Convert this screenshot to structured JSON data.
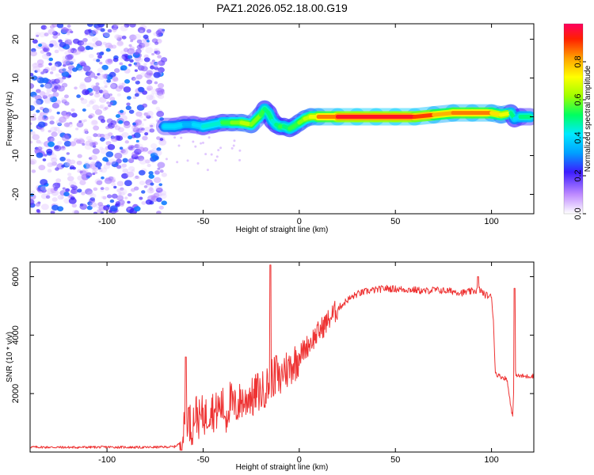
{
  "title": "PAZ1.2026.052.18.00.G19",
  "colors": {
    "snr_line": "#ee3333",
    "frame": "#000000",
    "scatter": "#8a2be2"
  },
  "chart_data": [
    {
      "type": "heatmap",
      "xlabel": "Height of straight line (km)",
      "ylabel": "Frequency (Hz)",
      "xlim": [
        -140,
        122
      ],
      "ylim": [
        -25,
        24
      ],
      "xticks": [
        -100,
        -50,
        0,
        50,
        100
      ],
      "yticks": [
        -20,
        -10,
        0,
        10,
        20
      ],
      "colorbar": {
        "label": "Normalized spectral amplitude",
        "range": [
          0,
          1
        ],
        "ticks": [
          "0.0",
          "0.2",
          "0.4",
          "0.6",
          "0.8"
        ],
        "stops": [
          {
            "v": 0.0,
            "c": "#ffffff"
          },
          {
            "v": 0.1,
            "c": "#c08cff"
          },
          {
            "v": 0.22,
            "c": "#3c1cff"
          },
          {
            "v": 0.32,
            "c": "#00a0ff"
          },
          {
            "v": 0.42,
            "c": "#00eaff"
          },
          {
            "v": 0.52,
            "c": "#00ff60"
          },
          {
            "v": 0.62,
            "c": "#a0ff00"
          },
          {
            "v": 0.72,
            "c": "#ffff00"
          },
          {
            "v": 0.82,
            "c": "#ffa000"
          },
          {
            "v": 0.92,
            "c": "#ff2000"
          },
          {
            "v": 1.0,
            "c": "#ff0060"
          }
        ]
      },
      "noise_region": {
        "x": [
          -140,
          -70
        ],
        "y": [
          -25,
          24
        ]
      },
      "ridge": {
        "x": [
          -70,
          -65,
          -60,
          -55,
          -50,
          -45,
          -40,
          -35,
          -30,
          -25,
          -20,
          -18,
          -16,
          -14,
          -12,
          -10,
          -8,
          -5,
          -3,
          0,
          3,
          6,
          10,
          20,
          30,
          40,
          50,
          60,
          70,
          80,
          90,
          100,
          105,
          110,
          112,
          115,
          120
        ],
        "y": [
          -2.5,
          -2.5,
          -2.0,
          -2.0,
          -2.5,
          -2.0,
          -1.5,
          -1.5,
          -1.5,
          -2.0,
          0.5,
          2.0,
          1.0,
          -1.0,
          -2.0,
          -2.5,
          -2.5,
          -3.0,
          -2.5,
          -1.5,
          -0.5,
          0.0,
          0.0,
          0.0,
          0.0,
          0.0,
          0.0,
          0.0,
          0.5,
          1.0,
          1.0,
          1.0,
          0.5,
          1.0,
          -0.5,
          0.0,
          0.0
        ],
        "amp": [
          0.4,
          0.4,
          0.35,
          0.4,
          0.45,
          0.45,
          0.55,
          0.6,
          0.65,
          0.6,
          0.55,
          0.5,
          0.5,
          0.45,
          0.5,
          0.55,
          0.5,
          0.55,
          0.55,
          0.6,
          0.65,
          0.7,
          0.85,
          0.95,
          0.95,
          0.95,
          0.95,
          0.9,
          0.8,
          0.85,
          0.85,
          0.75,
          0.7,
          0.5,
          0.4,
          0.5,
          0.5
        ]
      }
    },
    {
      "type": "line",
      "xlabel": "Height of straight line (km)",
      "ylabel": "SNR (10 * v/v)",
      "xlim": [
        -140,
        122
      ],
      "ylim": [
        0,
        6500
      ],
      "xticks": [
        -100,
        -50,
        0,
        50,
        100
      ],
      "yticks": [
        2000,
        4000,
        6000
      ],
      "series": [
        {
          "x": [
            -140,
            -120,
            -100,
            -80,
            -65,
            -62,
            -60,
            -58,
            -56,
            -54,
            -52,
            -50,
            -48,
            -46,
            -44,
            -42,
            -40,
            -38,
            -36,
            -34,
            -32,
            -30,
            -28,
            -26,
            -24,
            -22,
            -20,
            -18,
            -16,
            -14,
            -12,
            -10,
            -8,
            -6,
            -4,
            -2,
            0,
            5,
            10,
            15,
            20,
            25,
            30,
            35,
            40,
            45,
            50,
            55,
            60,
            65,
            70,
            75,
            80,
            85,
            90,
            94,
            96,
            98,
            100,
            101,
            102,
            104,
            106,
            108,
            110,
            111,
            112,
            113,
            114,
            116,
            118,
            120,
            122
          ],
          "y": [
            170,
            160,
            170,
            160,
            180,
            300,
            700,
            1300,
            800,
            1400,
            1100,
            1300,
            1200,
            1600,
            1300,
            1500,
            1600,
            1200,
            1800,
            1500,
            1600,
            1800,
            1700,
            2000,
            1800,
            2100,
            2000,
            2200,
            2300,
            2600,
            2500,
            2400,
            2900,
            2800,
            3000,
            3100,
            3300,
            3700,
            4100,
            4500,
            4900,
            5200,
            5400,
            5500,
            5550,
            5600,
            5580,
            5560,
            5550,
            5500,
            5550,
            5520,
            5500,
            5450,
            5500,
            5550,
            5400,
            5350,
            5300,
            4500,
            2700,
            2600,
            2550,
            2500,
            1600,
            1200,
            2800,
            2650,
            2600,
            2600,
            2580,
            2600,
            2600
          ],
          "spikes": [
            {
              "x": -59,
              "y": 3250
            },
            {
              "x": -15,
              "y": 6400
            },
            {
              "x": -12,
              "y": 3300
            },
            {
              "x": 93,
              "y": 6000
            },
            {
              "x": 112,
              "y": 5600
            }
          ]
        }
      ]
    }
  ]
}
